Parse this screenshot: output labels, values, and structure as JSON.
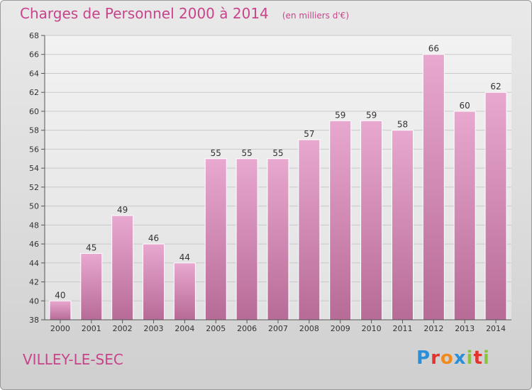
{
  "header": {
    "title": "Charges de Personnel 2000 à 2014",
    "subtitle": "(en milliers d'€)"
  },
  "footer": {
    "city": "VILLEY-LE-SEC",
    "logo_text": "Proxiti",
    "logo_colors": [
      "#2a8fd8",
      "#e5322d",
      "#f08a1c",
      "#2a8fd8",
      "#8bc53f",
      "#e5322d",
      "#8bc53f"
    ]
  },
  "colors": {
    "bar_top": "#e8a8cf",
    "bar_bottom": "#b76b97",
    "text_pink": "#c8448a"
  },
  "chart_data": {
    "type": "bar",
    "title": "Charges de Personnel 2000 à 2014",
    "subtitle": "(en milliers d'€)",
    "xlabel": "",
    "ylabel": "",
    "categories": [
      "2000",
      "2001",
      "2002",
      "2003",
      "2004",
      "2005",
      "2006",
      "2007",
      "2008",
      "2009",
      "2010",
      "2011",
      "2012",
      "2013",
      "2014"
    ],
    "values": [
      40,
      45,
      49,
      46,
      44,
      55,
      55,
      55,
      57,
      59,
      59,
      58,
      66,
      60,
      62
    ],
    "ylim": [
      38,
      68
    ],
    "yticks": [
      38,
      40,
      42,
      44,
      46,
      48,
      50,
      52,
      54,
      56,
      58,
      60,
      62,
      64,
      66,
      68
    ],
    "grid": true,
    "legend": "none"
  }
}
